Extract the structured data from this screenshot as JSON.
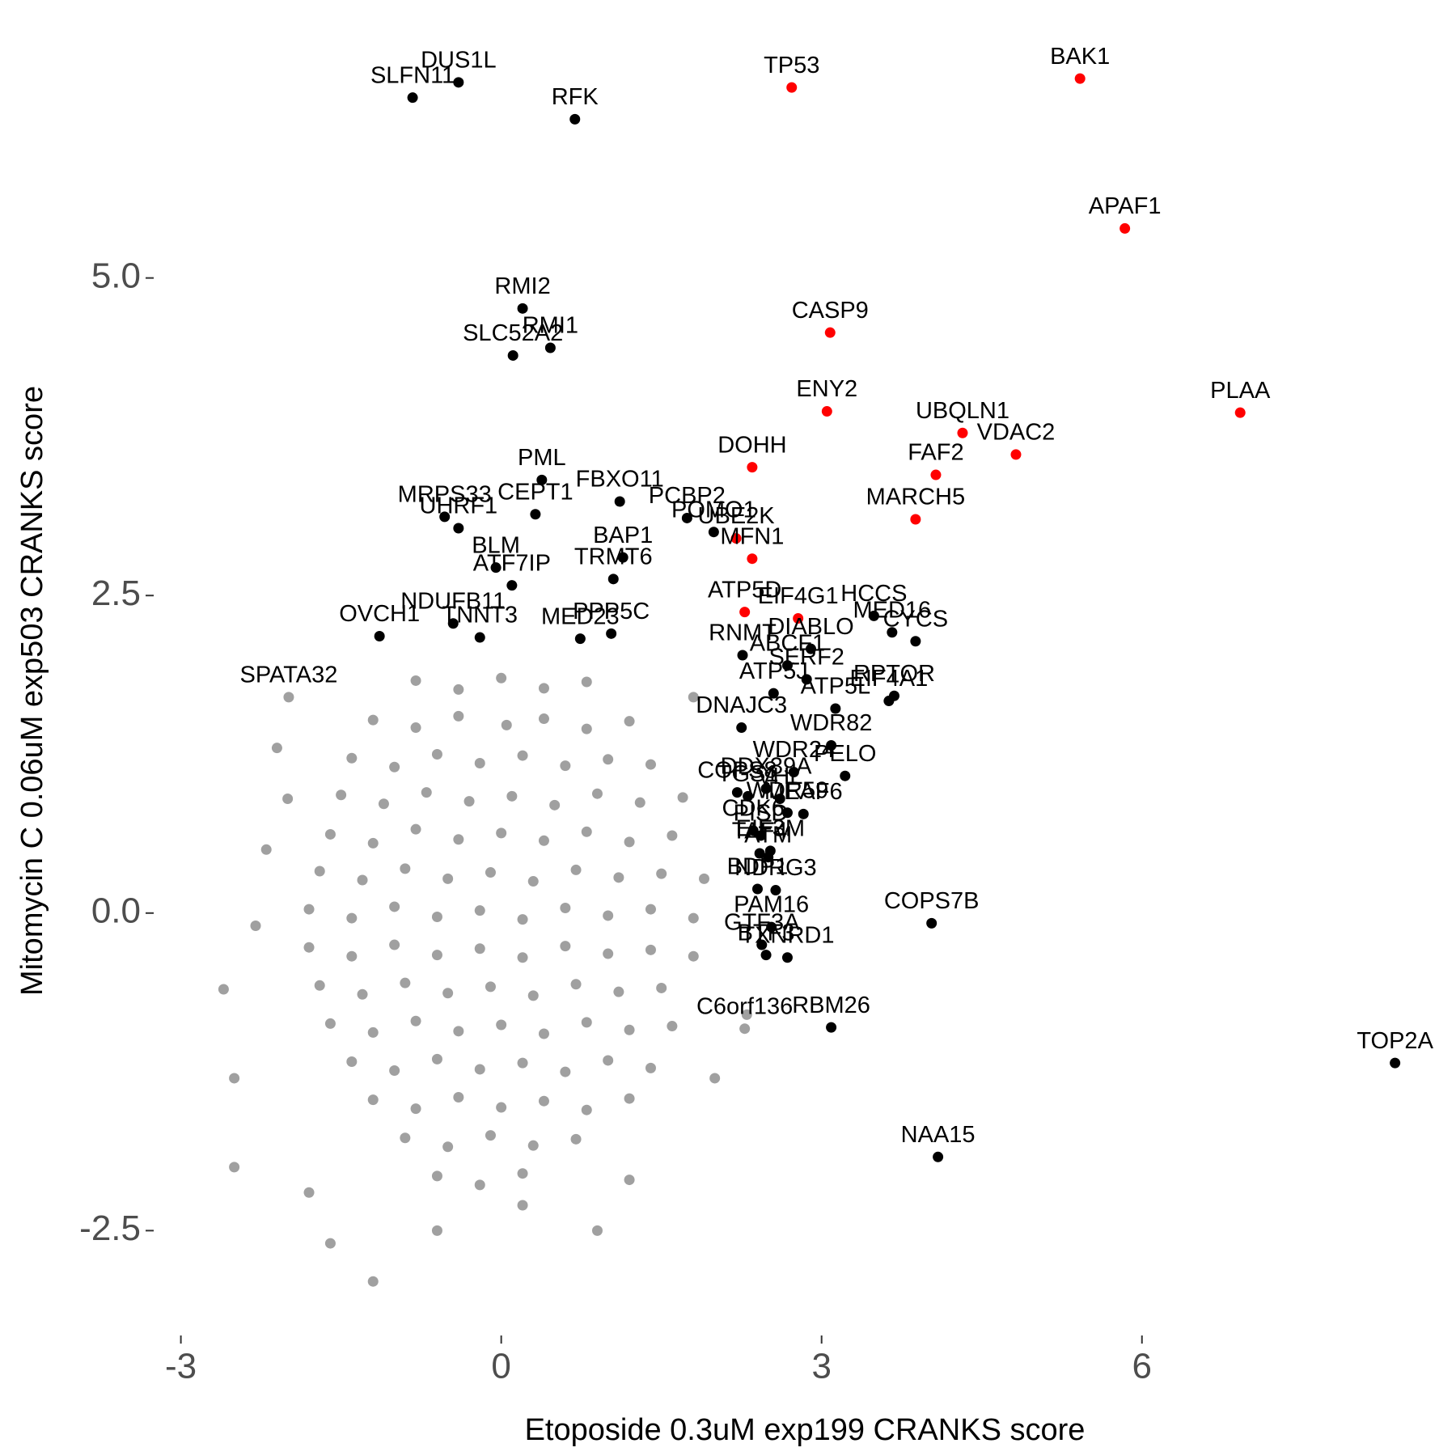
{
  "chart_data": {
    "type": "scatter",
    "x_label": "Etoposide 0.3uM exp199 CRANKS score",
    "y_label": "Mitomycin C 0.06uM exp503 CRANKS score",
    "xlim": [
      -3.3,
      8.6
    ],
    "ylim": [
      -3.3,
      6.8
    ],
    "xticks": [
      -3,
      0,
      3,
      6
    ],
    "yticks": [
      -2.5,
      {
        "value": 0,
        "label": "0.0"
      },
      2.5,
      {
        "value": 5,
        "label": "5.0"
      }
    ],
    "grid": false,
    "series": [
      {
        "color": "#a0a0a0",
        "x": [
          -0.8,
          -0.4,
          0.0,
          0.4,
          0.8,
          -1.2,
          -0.8,
          -0.4,
          0.05,
          0.4,
          0.8,
          1.2,
          -1.4,
          -1.0,
          -0.6,
          -0.2,
          0.2,
          0.6,
          1.0,
          1.4,
          -1.5,
          -1.1,
          -0.7,
          -0.3,
          0.1,
          0.5,
          0.9,
          1.3,
          1.7,
          -1.6,
          -1.2,
          -0.8,
          -0.4,
          0.0,
          0.4,
          0.8,
          1.2,
          1.6,
          -1.7,
          -1.3,
          -0.9,
          -0.5,
          -0.1,
          0.3,
          0.7,
          1.1,
          1.5,
          1.9,
          -1.8,
          -1.4,
          -1.0,
          -0.6,
          -0.2,
          0.2,
          0.6,
          1.0,
          1.4,
          1.8,
          -1.8,
          -1.4,
          -1.0,
          -0.6,
          -0.2,
          0.2,
          0.6,
          1.0,
          1.4,
          1.8,
          -1.7,
          -1.3,
          -0.9,
          -0.5,
          -0.1,
          0.3,
          0.7,
          1.1,
          1.5,
          -1.6,
          -1.2,
          -0.8,
          -0.4,
          0.0,
          0.4,
          0.8,
          1.2,
          1.6,
          -1.4,
          -1.0,
          -0.6,
          -0.2,
          0.2,
          0.6,
          1.0,
          1.4,
          -1.2,
          -0.8,
          -0.4,
          0.0,
          0.4,
          0.8,
          1.2,
          -0.9,
          -0.5,
          -0.1,
          0.3,
          0.7,
          -0.6,
          -0.2,
          0.2,
          -2.6,
          -2.5,
          -2.2,
          -2.0,
          -2.5,
          -1.6,
          -1.2,
          -0.6,
          0.9,
          0.2,
          2.0,
          1.8,
          2.3,
          -2.1,
          -1.8,
          -2.3,
          1.2
        ],
        "y": [
          1.83,
          1.76,
          1.85,
          1.77,
          1.82,
          1.52,
          1.46,
          1.55,
          1.48,
          1.53,
          1.45,
          1.51,
          1.22,
          1.15,
          1.25,
          1.18,
          1.24,
          1.16,
          1.21,
          1.17,
          0.93,
          0.86,
          0.95,
          0.88,
          0.92,
          0.85,
          0.94,
          0.87,
          0.91,
          0.62,
          0.55,
          0.66,
          0.58,
          0.63,
          0.57,
          0.64,
          0.56,
          0.61,
          0.33,
          0.26,
          0.35,
          0.27,
          0.32,
          0.25,
          0.34,
          0.28,
          0.31,
          0.27,
          0.03,
          -0.04,
          0.05,
          -0.03,
          0.02,
          -0.05,
          0.04,
          -0.02,
          0.03,
          -0.04,
          -0.27,
          -0.34,
          -0.25,
          -0.33,
          -0.28,
          -0.35,
          -0.26,
          -0.32,
          -0.29,
          -0.34,
          -0.57,
          -0.64,
          -0.55,
          -0.63,
          -0.58,
          -0.65,
          -0.56,
          -0.62,
          -0.59,
          -0.87,
          -0.94,
          -0.85,
          -0.93,
          -0.88,
          -0.95,
          -0.86,
          -0.92,
          -0.89,
          -1.17,
          -1.24,
          -1.15,
          -1.23,
          -1.18,
          -1.25,
          -1.16,
          -1.22,
          -1.47,
          -1.54,
          -1.45,
          -1.53,
          -1.48,
          -1.55,
          -1.46,
          -1.77,
          -1.84,
          -1.75,
          -1.83,
          -1.78,
          -2.07,
          -2.14,
          -2.05,
          -0.6,
          -1.3,
          0.5,
          0.9,
          -2.0,
          -2.6,
          -2.9,
          -2.5,
          -2.5,
          -2.3,
          -1.3,
          1.7,
          -0.8,
          1.3,
          -2.2,
          -0.1,
          -2.1
        ]
      },
      {
        "color": "#a0a0a0",
        "x": [
          -1.99,
          2.28
        ],
        "y": [
          1.7,
          -0.91
        ],
        "labels": [
          "SPATA32",
          "C6orf136"
        ]
      },
      {
        "color": "#000000",
        "labels": [
          "DUS1L",
          "SLFN11",
          "RFK",
          "RMI2",
          "RMI1",
          "SLC52A2",
          "PML",
          "FBXO11",
          "PCBP2",
          "POMO1",
          "MRPS33",
          "UHRF1",
          "CEPT1",
          "BLM",
          "ATF7IP",
          "BAP1",
          "TRMT6",
          "NDUFB11",
          "OVCH1",
          "TNNT3",
          "MED23",
          "PPP5C",
          "RNMT",
          "ABCF1",
          "DIABLO",
          "HCCS",
          "MED16",
          "CYCS",
          "SERF2",
          "RPTOR",
          "EIF4A1",
          "ATP5J",
          "ATP5L",
          "WDR82",
          "DNAJC3",
          "PELO",
          "WDR24",
          "DDX39A",
          "VHL",
          "MEAF6",
          "COPS8",
          "TGS1",
          "WDR59",
          "PISD",
          "CDK6",
          "EIF3M",
          "ATM",
          "TAF4",
          "BDP1",
          "NDRG3",
          "PAM16",
          "COPS7B",
          "TXNRD1",
          "GTF3A",
          "BTF3",
          "RBM26",
          "TOP2A",
          "NAA15"
        ],
        "x": [
          -0.4,
          -0.83,
          0.69,
          0.2,
          0.46,
          0.11,
          0.38,
          1.11,
          1.74,
          1.99,
          -0.53,
          -0.4,
          0.32,
          -0.05,
          0.1,
          1.14,
          1.05,
          -0.45,
          -1.14,
          -0.2,
          0.74,
          1.03,
          2.26,
          2.68,
          2.9,
          3.49,
          3.66,
          3.88,
          2.86,
          3.68,
          3.63,
          2.55,
          3.13,
          3.09,
          2.25,
          3.22,
          2.74,
          2.48,
          2.61,
          2.83,
          2.21,
          2.31,
          2.68,
          2.43,
          2.36,
          2.52,
          2.5,
          2.42,
          2.4,
          2.57,
          2.53,
          4.03,
          2.68,
          2.44,
          2.48,
          3.09,
          8.37,
          4.09
        ],
        "y": [
          6.54,
          6.42,
          6.25,
          4.76,
          4.45,
          4.39,
          3.41,
          3.24,
          3.11,
          3.0,
          3.12,
          3.03,
          3.14,
          2.72,
          2.58,
          2.8,
          2.63,
          2.28,
          2.18,
          2.17,
          2.16,
          2.2,
          2.03,
          1.95,
          2.08,
          2.34,
          2.21,
          2.14,
          1.84,
          1.71,
          1.67,
          1.73,
          1.61,
          1.32,
          1.46,
          1.08,
          1.11,
          0.98,
          0.9,
          0.78,
          0.95,
          0.92,
          0.79,
          0.61,
          0.65,
          0.49,
          0.44,
          0.47,
          0.19,
          0.18,
          -0.11,
          -0.08,
          -0.35,
          -0.25,
          -0.33,
          -0.9,
          -1.18,
          -1.92
        ]
      },
      {
        "color": "#ff0000",
        "labels": [
          "TP53",
          "BAK1",
          "APAF1",
          "CASP9",
          "ENY2",
          "UBQLN1",
          "VDAC2",
          "PLAA",
          "DOHH",
          "FAF2",
          "MARCH5",
          "UBE2K",
          "MFN1",
          "EIF4G1",
          "ATP5D"
        ],
        "x": [
          2.72,
          5.42,
          5.84,
          3.08,
          3.05,
          4.32,
          4.82,
          6.92,
          2.35,
          4.07,
          3.88,
          2.2,
          2.35,
          2.78,
          2.28
        ],
        "y": [
          6.5,
          6.57,
          5.39,
          4.57,
          3.95,
          3.78,
          3.61,
          3.94,
          3.51,
          3.45,
          3.1,
          2.95,
          2.79,
          2.32,
          2.37
        ]
      }
    ]
  }
}
